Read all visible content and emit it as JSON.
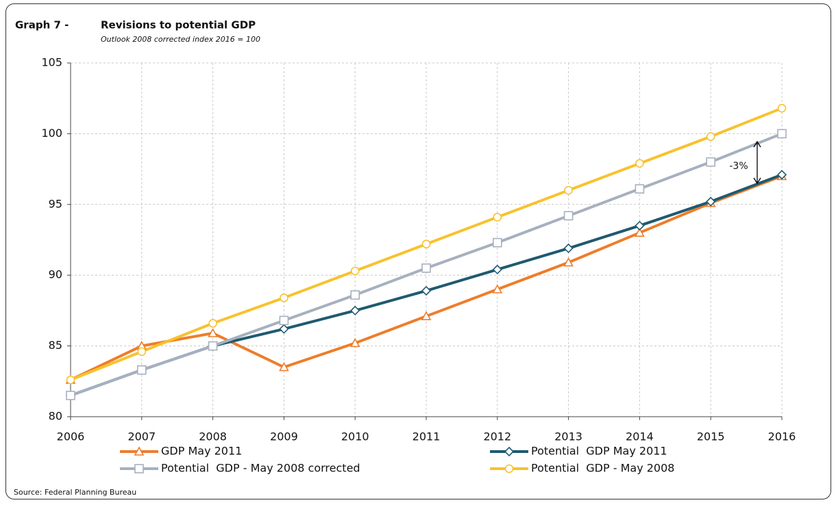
{
  "chart_data": {
    "type": "line",
    "title_label": "Graph 7 -",
    "title": "Revisions to potential GDP",
    "subtitle": "Outlook 2008 corrected index 2016 = 100",
    "source": "Source: Federal Planning Bureau",
    "x": [
      2006,
      2007,
      2008,
      2009,
      2010,
      2011,
      2012,
      2013,
      2014,
      2015,
      2016
    ],
    "xlim": [
      2006,
      2016
    ],
    "xticks": [
      2006,
      2007,
      2008,
      2009,
      2010,
      2011,
      2012,
      2013,
      2014,
      2015,
      2016
    ],
    "ylim": [
      80,
      105
    ],
    "yticks": [
      80,
      85,
      90,
      95,
      100,
      105
    ],
    "grid": true,
    "series": [
      {
        "name": "GDP May 2011",
        "color": "#ee7d2a",
        "marker": "triangle",
        "values": [
          82.6,
          85.0,
          85.9,
          83.5,
          85.2,
          87.1,
          89.0,
          90.9,
          93.0,
          95.1,
          97.0
        ]
      },
      {
        "name": "Potential  GDP May 2011",
        "color": "#1f5a70",
        "marker": "diamond",
        "values": [
          81.5,
          83.3,
          85.0,
          86.2,
          87.5,
          88.9,
          90.4,
          91.9,
          93.5,
          95.2,
          97.1
        ]
      },
      {
        "name": "Potential  GDP - May 2008 corrected",
        "color": "#a6b0bf",
        "marker": "square",
        "values": [
          81.5,
          83.3,
          85.0,
          86.8,
          88.6,
          90.5,
          92.3,
          94.2,
          96.1,
          98.0,
          100.0
        ]
      },
      {
        "name": "Potential  GDP - May 2008",
        "color": "#f8c22e",
        "marker": "circle",
        "values": [
          82.6,
          84.6,
          86.6,
          88.4,
          90.3,
          92.2,
          94.1,
          96.0,
          97.9,
          99.8,
          101.8
        ]
      }
    ],
    "annotation": "-3%"
  }
}
